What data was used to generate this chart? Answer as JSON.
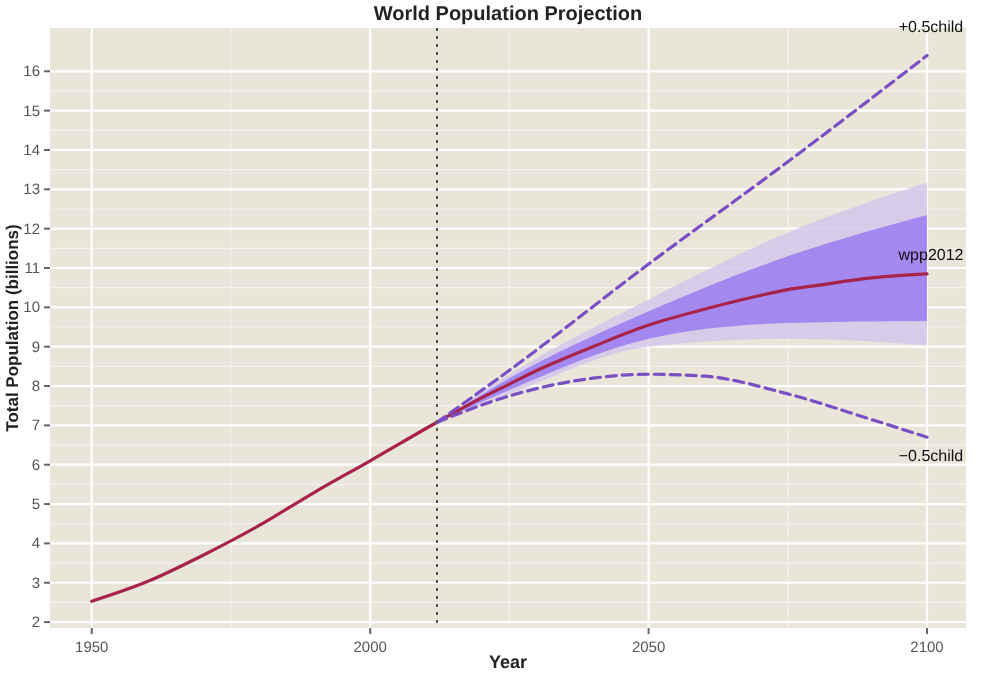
{
  "chart_data": {
    "type": "line",
    "title": "World Population Projection",
    "xlabel": "Year",
    "ylabel": "Total Population (billions)",
    "xlim": [
      1942.5,
      2107
    ],
    "ylim": [
      1.85,
      17.1
    ],
    "xticks": [
      1950,
      2000,
      2050,
      2100
    ],
    "yticks": [
      2,
      3,
      4,
      5,
      6,
      7,
      8,
      9,
      10,
      11,
      12,
      13,
      14,
      15,
      16
    ],
    "grid": true,
    "ref_lines": [
      {
        "axis": "x",
        "value": 2012,
        "color": "#555555",
        "line_style": "dotted"
      }
    ],
    "series": [
      {
        "color": "#d4c8ea",
        "x": [
          2012,
          2025,
          2050,
          2075,
          2100
        ],
        "values": [
          null,
          null,
          null,
          null,
          null
        ],
        "lower": [
          7.08,
          7.8,
          9.0,
          9.2,
          9.03
        ],
        "upper": [
          7.08,
          8.3,
          10.2,
          11.9,
          13.17
        ]
      },
      {
        "color": "#9a7cf0",
        "x": [
          2012,
          2025,
          2050,
          2075,
          2100
        ],
        "values": [
          null,
          null,
          null,
          null,
          null
        ],
        "lower": [
          7.08,
          7.9,
          9.2,
          9.6,
          9.65
        ],
        "upper": [
          7.08,
          8.2,
          9.9,
          11.3,
          12.35
        ]
      },
      {
        "name": "wpp2012",
        "color": "#a8234a",
        "x": [
          1950,
          1960,
          1970,
          1980,
          1990,
          2000,
          2012,
          2020,
          2025,
          2030,
          2040,
          2050,
          2060,
          2070,
          2075,
          2080,
          2090,
          2100
        ],
        "values": [
          2.53,
          3.03,
          3.7,
          4.45,
          5.3,
          6.1,
          7.08,
          7.7,
          8.05,
          8.4,
          9.0,
          9.55,
          9.95,
          10.3,
          10.45,
          10.55,
          10.75,
          10.85
        ]
      },
      {
        "name": "+0.5child",
        "color": "#7a4fc4",
        "line_style": "dashed",
        "x": [
          2012,
          2025,
          2050,
          2075,
          2100
        ],
        "values": [
          7.08,
          8.4,
          11.1,
          13.7,
          16.4
        ]
      },
      {
        "name": "−0.5child",
        "color": "#7a4fc4",
        "line_style": "dashed",
        "x": [
          2012,
          2025,
          2040,
          2050,
          2060,
          2075,
          2090,
          2100
        ],
        "values": [
          7.08,
          7.75,
          8.2,
          8.3,
          8.25,
          7.8,
          7.15,
          6.7
        ]
      }
    ]
  }
}
